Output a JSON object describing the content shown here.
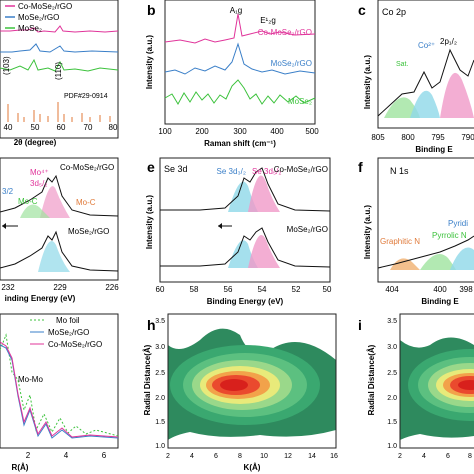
{
  "figure": {
    "panels": {
      "a": {
        "letter": "",
        "legend": [
          "Co-MoSe₂/rGO",
          "MoSe₂/rGO",
          "MoSe₂"
        ],
        "peaks": [
          "(103)",
          "(110)"
        ],
        "pdf": "PDF#29-0914",
        "xlabel": "2θ (degree)",
        "xticks": [
          "40",
          "50",
          "60",
          "70",
          "80"
        ]
      },
      "b": {
        "letter": "b",
        "ylabel": "Intensity (a.u.)",
        "xlabel": "Raman shift (cm⁻¹)",
        "xticks": [
          "100",
          "200",
          "300",
          "400",
          "500"
        ],
        "peak1": "A₁g",
        "peak2": "E¹₂g",
        "labels": [
          "Co-MoSe₂/rGO",
          "MoSe₂/rGO",
          "MoSe₂"
        ]
      },
      "c": {
        "letter": "c",
        "title": "Co 2p",
        "ylabel": "Intensity (a.u.)",
        "xlabel": "Binding E",
        "xticks": [
          "805",
          "800",
          "795",
          "790"
        ],
        "annotations": [
          "Co²⁺",
          "2p₁/₂",
          "Sat."
        ]
      },
      "d": {
        "letter": "",
        "labels": [
          "Co-MoSe₂/rGO",
          "MoSe₂/rGO"
        ],
        "annotations": [
          "Mo⁴⁺",
          "3d₅/₂",
          "Mo-C",
          "Mo-C",
          "3/2"
        ],
        "xlabel": "inding Energy (eV)",
        "xticks": [
          "232",
          "229",
          "226"
        ]
      },
      "e": {
        "letter": "e",
        "title": "Se 3d",
        "ylabel": "Intensity (a.u.)",
        "xlabel": "Binding Energy (eV)",
        "xticks": [
          "60",
          "58",
          "56",
          "54",
          "52",
          "50"
        ],
        "annotations": [
          "Se 3d₃/₂",
          "Se 3d₅/₂"
        ],
        "labels": [
          "Co-MoSe₂/rGO",
          "MoSe₂/rGO"
        ]
      },
      "f": {
        "letter": "f",
        "title": "N 1s",
        "ylabel": "Intensity (a.u.)",
        "xlabel": "Binding E",
        "xticks": [
          "404",
          "400",
          "398"
        ],
        "annotations": [
          "Graphitic N",
          "Pyrrolic N",
          "Pyridi"
        ]
      },
      "g": {
        "letter": "",
        "legend": [
          "Mo foil",
          "MoSe₂/rGO",
          "Co-MoSe₂/rGO"
        ],
        "annotation": "Mo-Mo",
        "xlabel": "R(Å)",
        "xticks": [
          "2",
          "4",
          "6"
        ]
      },
      "h": {
        "letter": "h",
        "ylabel": "Radial Distance(Å)",
        "xlabel": "K(Å)",
        "yticks": [
          "1.0",
          "1.5",
          "2.0",
          "2.5",
          "3.0",
          "3.5"
        ],
        "xticks": [
          "2",
          "4",
          "6",
          "8",
          "10",
          "12",
          "14",
          "16"
        ]
      },
      "i": {
        "letter": "i",
        "ylabel": "Radial Distance(Å)",
        "yticks": [
          "1.0",
          "1.5",
          "2.0",
          "2.5",
          "3.0",
          "3.5"
        ],
        "xticks": [
          "2",
          "4",
          "6",
          "8"
        ]
      }
    },
    "colors": {
      "magenta": "#e0349a",
      "blue": "#3a7fc8",
      "green": "#3cc23c",
      "pdf": "#e07a3a"
    }
  }
}
